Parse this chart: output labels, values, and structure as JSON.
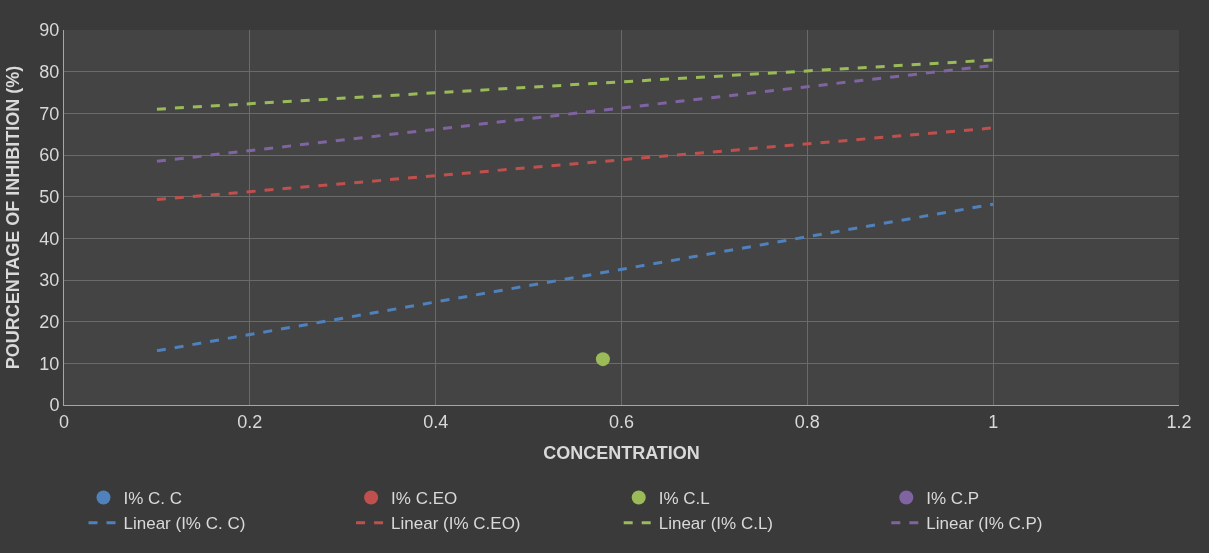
{
  "chart_data": {
    "type": "scatter",
    "xlabel": "CONCENTRATION",
    "ylabel": "POURCENTAGE OF INHIBITION (%)",
    "xlim": [
      0,
      1.2
    ],
    "xticks": [
      0,
      0.2,
      0.4,
      0.6,
      0.8,
      1,
      1.2
    ],
    "ylim": [
      0,
      90
    ],
    "yticks": [
      0,
      10,
      20,
      30,
      40,
      50,
      60,
      70,
      80,
      90
    ],
    "grid": true,
    "legend": "bottom",
    "series": [
      {
        "name": "I% C. C",
        "marker": "circle",
        "color": "#4f81bd"
      },
      {
        "name": "I% C.EO",
        "marker": "circle",
        "color": "#c0504d"
      },
      {
        "name": "I% C.L",
        "marker": "circle",
        "color": "#9bbb59",
        "x": [
          0.58
        ],
        "values": [
          11
        ]
      },
      {
        "name": "I% C.P",
        "marker": "circle",
        "color": "#8064a2"
      },
      {
        "name": "Linear (I% C. C)",
        "type": "line",
        "line_style": "dashed",
        "color": "#4f81bd",
        "x": [
          0.1,
          1
        ],
        "values": [
          13,
          48.2
        ]
      },
      {
        "name": "Linear (I% C.EO)",
        "type": "line",
        "line_style": "dashed",
        "color": "#c0504d",
        "x": [
          0.1,
          1
        ],
        "values": [
          49.3,
          66.5
        ]
      },
      {
        "name": "Linear (I% C.L)",
        "type": "line",
        "line_style": "dashed",
        "color": "#9bbb59",
        "x": [
          0.1,
          1
        ],
        "values": [
          71,
          82.8
        ]
      },
      {
        "name": "Linear (I% C.P)",
        "type": "line",
        "line_style": "dashed",
        "color": "#8064a2",
        "x": [
          0.1,
          1
        ],
        "values": [
          58.5,
          81.5
        ]
      }
    ]
  }
}
